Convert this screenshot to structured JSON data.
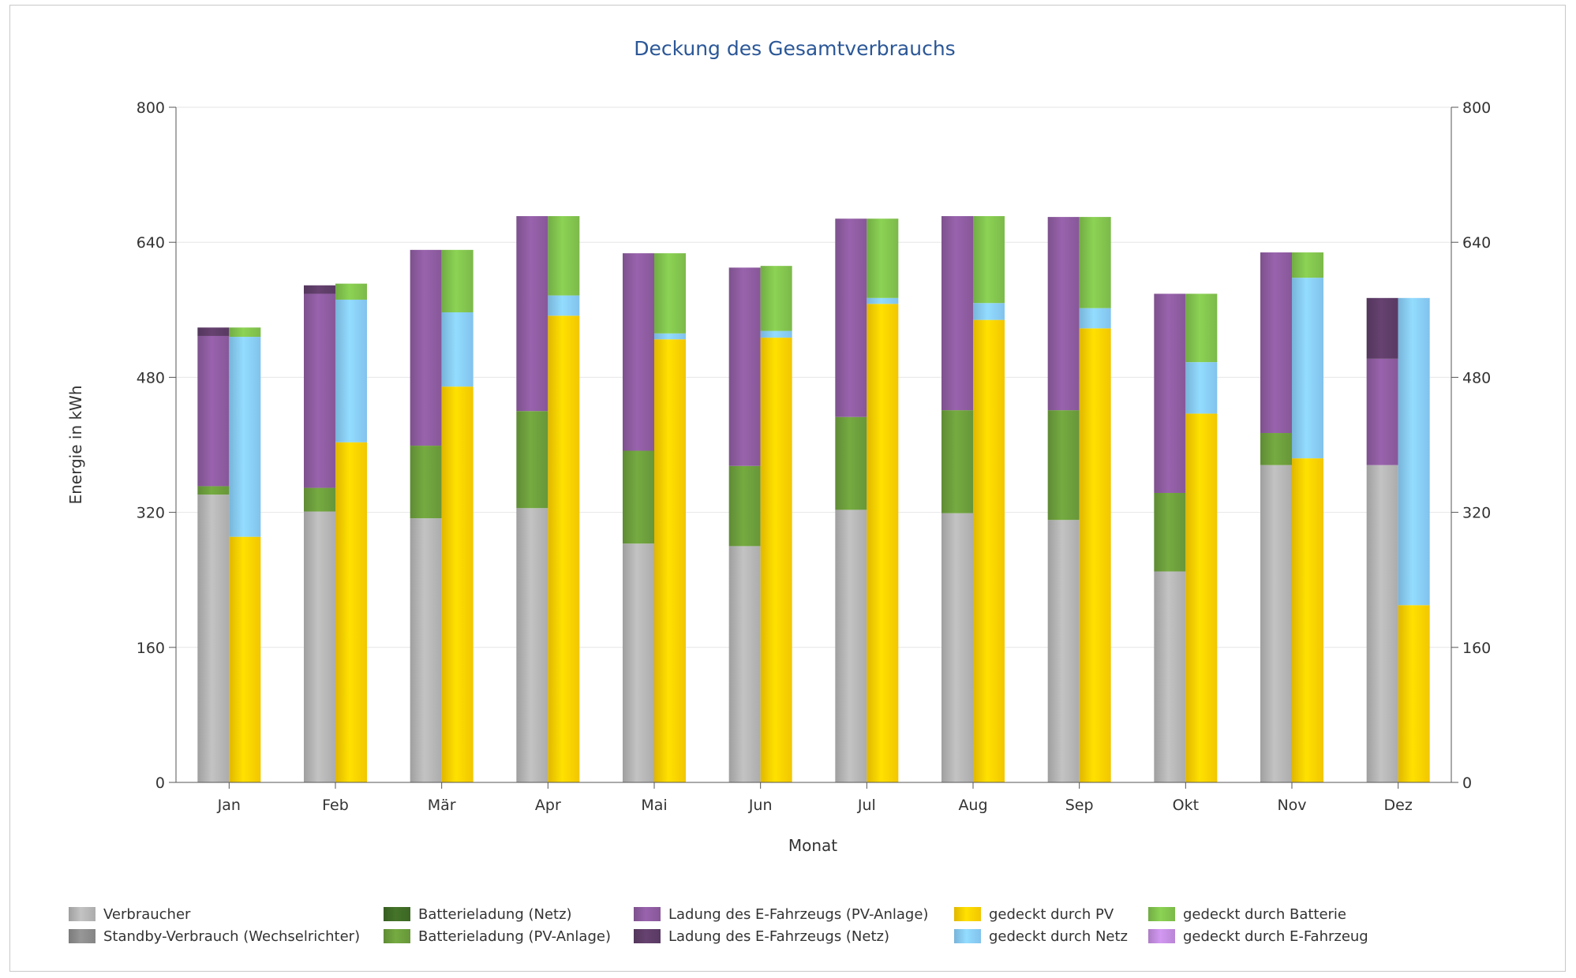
{
  "chart_data": {
    "type": "bar",
    "title": "Deckung des Gesamtverbrauchs",
    "xlabel": "Monat",
    "ylabel": "Energie in kWh",
    "ylim": [
      0,
      800
    ],
    "yticks": [
      "0",
      "160",
      "320",
      "480",
      "640",
      "800"
    ],
    "grid": true,
    "legend_position": "bottom",
    "categories": [
      "Jan",
      "Feb",
      "Mär",
      "Apr",
      "Mai",
      "Jun",
      "Jul",
      "Aug",
      "Sep",
      "Okt",
      "Nov",
      "Dez"
    ],
    "consumption_stack": [
      {
        "name": "Verbraucher",
        "color": "#b5b5b5",
        "values": [
          341,
          321,
          313,
          325,
          283,
          280,
          323,
          319,
          311,
          250,
          376,
          376
        ]
      },
      {
        "name": "Standby-Verbrauch (Wechselrichter)",
        "color": "#8c8c8c",
        "values": [
          0,
          0,
          0,
          0,
          0,
          0,
          0,
          0,
          0,
          0,
          0,
          0
        ]
      },
      {
        "name": "Batterieladung (Netz)",
        "color": "#3f6b26",
        "values": [
          0,
          0,
          0,
          0,
          0,
          0,
          0,
          0,
          0,
          0,
          0,
          0
        ]
      },
      {
        "name": "Batterieladung (PV-Anlage)",
        "color": "#6c9e3c",
        "values": [
          10,
          28,
          86,
          115,
          110,
          95,
          110,
          122,
          130,
          93,
          38,
          0
        ]
      },
      {
        "name": "Ladung des E-Fahrzeugs (PV-Anlage)",
        "color": "#8e5ca0",
        "values": [
          178,
          230,
          232,
          231,
          234,
          235,
          235,
          230,
          229,
          236,
          214,
          126
        ]
      },
      {
        "name": "Ladung des E-Fahrzeugs (Netz)",
        "color": "#5e3d68",
        "values": [
          10,
          10,
          0,
          0,
          0,
          0,
          0,
          0,
          0,
          0,
          0,
          72
        ]
      }
    ],
    "coverage_stack": [
      {
        "name": "gedeckt durch PV",
        "color": "#ffd000",
        "values": [
          291,
          403,
          469,
          553,
          525,
          527,
          567,
          548,
          538,
          437,
          384,
          210
        ]
      },
      {
        "name": "gedeckt durch Netz",
        "color": "#88ccf8",
        "values": [
          237,
          169,
          88,
          24,
          7,
          8,
          7,
          20,
          24,
          61,
          214,
          364
        ]
      },
      {
        "name": "gedeckt durch Batterie",
        "color": "#82c34e",
        "values": [
          11,
          19,
          74,
          94,
          95,
          77,
          94,
          103,
          108,
          81,
          30,
          0
        ]
      },
      {
        "name": "gedeckt durch E-Fahrzeug",
        "color": "#c38de0",
        "values": [
          0,
          0,
          0,
          0,
          0,
          0,
          0,
          0,
          0,
          0,
          0,
          0
        ]
      }
    ]
  }
}
